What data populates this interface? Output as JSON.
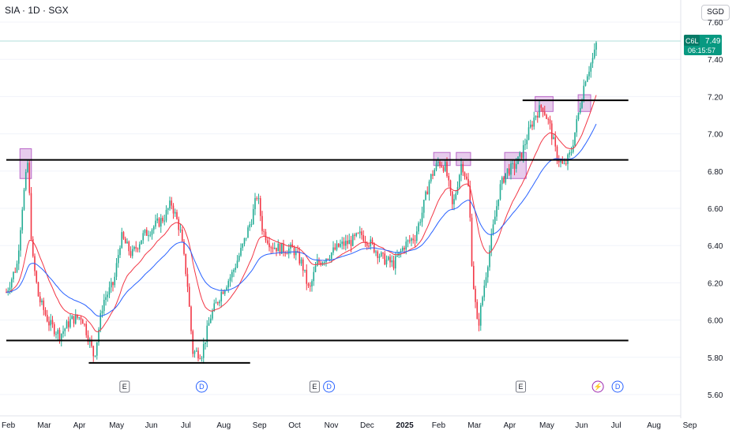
{
  "header": {
    "title": "SIA · 1D · SGX",
    "currency": "SGD"
  },
  "price_badge": {
    "ticker": "C6L",
    "price": "7.49",
    "countdown": "06:15:57",
    "color": "#089981"
  },
  "colors": {
    "up": "#22ab94",
    "down": "#f23645",
    "ema_fast": "#f23645",
    "ema_slow": "#2962ff",
    "level": "#000000",
    "zone_fill": "#e1bee7",
    "zone_stroke": "#ba68c8"
  },
  "chart_data": {
    "type": "candlestick",
    "title": "",
    "x_ticks": [
      "Feb",
      "Mar",
      "Apr",
      "May",
      "Jun",
      "Jul",
      "Aug",
      "Sep",
      "Oct",
      "Nov",
      "Dec",
      "2025",
      "Feb",
      "Mar",
      "Apr",
      "May",
      "Jun",
      "Jul",
      "Aug",
      "Sep"
    ],
    "y_ticks": [
      "7.60",
      "7.40",
      "7.20",
      "7.00",
      "6.80",
      "6.60",
      "6.40",
      "6.20",
      "6.00",
      "5.80",
      "5.60"
    ],
    "ylim": [
      5.6,
      7.6
    ],
    "last_price": 7.49,
    "price_path": [
      {
        "m": 0.0,
        "p": 6.15
      },
      {
        "m": 0.3,
        "p": 6.3
      },
      {
        "m": 0.45,
        "p": 6.62
      },
      {
        "m": 0.6,
        "p": 6.85
      },
      {
        "m": 0.72,
        "p": 6.35
      },
      {
        "m": 0.9,
        "p": 6.12
      },
      {
        "m": 1.2,
        "p": 5.98
      },
      {
        "m": 1.5,
        "p": 5.92
      },
      {
        "m": 1.8,
        "p": 6.0
      },
      {
        "m": 2.1,
        "p": 6.02
      },
      {
        "m": 2.3,
        "p": 5.9
      },
      {
        "m": 2.45,
        "p": 5.8
      },
      {
        "m": 2.7,
        "p": 6.1
      },
      {
        "m": 3.0,
        "p": 6.2
      },
      {
        "m": 3.2,
        "p": 6.45
      },
      {
        "m": 3.5,
        "p": 6.35
      },
      {
        "m": 3.8,
        "p": 6.45
      },
      {
        "m": 4.1,
        "p": 6.5
      },
      {
        "m": 4.4,
        "p": 6.55
      },
      {
        "m": 4.6,
        "p": 6.63
      },
      {
        "m": 4.85,
        "p": 6.48
      },
      {
        "m": 5.05,
        "p": 6.2
      },
      {
        "m": 5.2,
        "p": 5.83
      },
      {
        "m": 5.45,
        "p": 5.82
      },
      {
        "m": 5.7,
        "p": 6.02
      },
      {
        "m": 6.0,
        "p": 6.15
      },
      {
        "m": 6.3,
        "p": 6.25
      },
      {
        "m": 6.6,
        "p": 6.4
      },
      {
        "m": 6.85,
        "p": 6.55
      },
      {
        "m": 7.0,
        "p": 6.68
      },
      {
        "m": 7.15,
        "p": 6.48
      },
      {
        "m": 7.4,
        "p": 6.4
      },
      {
        "m": 7.7,
        "p": 6.38
      },
      {
        "m": 8.0,
        "p": 6.38
      },
      {
        "m": 8.25,
        "p": 6.3
      },
      {
        "m": 8.45,
        "p": 6.15
      },
      {
        "m": 8.65,
        "p": 6.3
      },
      {
        "m": 9.0,
        "p": 6.35
      },
      {
        "m": 9.3,
        "p": 6.4
      },
      {
        "m": 9.6,
        "p": 6.42
      },
      {
        "m": 9.9,
        "p": 6.46
      },
      {
        "m": 10.2,
        "p": 6.4
      },
      {
        "m": 10.5,
        "p": 6.33
      },
      {
        "m": 10.8,
        "p": 6.3
      },
      {
        "m": 11.1,
        "p": 6.4
      },
      {
        "m": 11.4,
        "p": 6.45
      },
      {
        "m": 11.6,
        "p": 6.58
      },
      {
        "m": 11.8,
        "p": 6.75
      },
      {
        "m": 12.05,
        "p": 6.85
      },
      {
        "m": 12.25,
        "p": 6.82
      },
      {
        "m": 12.45,
        "p": 6.6
      },
      {
        "m": 12.7,
        "p": 6.85
      },
      {
        "m": 12.9,
        "p": 6.7
      },
      {
        "m": 13.0,
        "p": 6.25
      },
      {
        "m": 13.15,
        "p": 5.95
      },
      {
        "m": 13.3,
        "p": 6.15
      },
      {
        "m": 13.5,
        "p": 6.4
      },
      {
        "m": 13.75,
        "p": 6.7
      },
      {
        "m": 13.95,
        "p": 6.8
      },
      {
        "m": 14.15,
        "p": 6.82
      },
      {
        "m": 14.35,
        "p": 6.88
      },
      {
        "m": 14.55,
        "p": 7.0
      },
      {
        "m": 14.75,
        "p": 7.1
      },
      {
        "m": 14.95,
        "p": 7.15
      },
      {
        "m": 15.15,
        "p": 7.05
      },
      {
        "m": 15.35,
        "p": 6.88
      },
      {
        "m": 15.55,
        "p": 6.82
      },
      {
        "m": 15.75,
        "p": 6.9
      },
      {
        "m": 15.95,
        "p": 7.1
      },
      {
        "m": 16.15,
        "p": 7.3
      },
      {
        "m": 16.35,
        "p": 7.4
      },
      {
        "m": 16.5,
        "p": 7.49
      }
    ],
    "levels": [
      {
        "price": 6.86,
        "m_start": 0.0,
        "m_end": 17.35
      },
      {
        "price": 7.18,
        "m_start": 14.4,
        "m_end": 17.35
      },
      {
        "price": 5.89,
        "m_start": 0.0,
        "m_end": 17.35
      },
      {
        "price": 5.77,
        "m_start": 2.3,
        "m_end": 6.8
      }
    ],
    "zones": [
      {
        "m_start": 0.38,
        "m_end": 0.7,
        "p_low": 6.76,
        "p_high": 6.92
      },
      {
        "m_start": 11.92,
        "m_end": 12.38,
        "p_low": 6.83,
        "p_high": 6.9
      },
      {
        "m_start": 12.55,
        "m_end": 12.95,
        "p_low": 6.83,
        "p_high": 6.9
      },
      {
        "m_start": 13.9,
        "m_end": 14.5,
        "p_low": 6.76,
        "p_high": 6.9
      },
      {
        "m_start": 14.75,
        "m_end": 15.25,
        "p_low": 7.12,
        "p_high": 7.2
      },
      {
        "m_start": 15.95,
        "m_end": 16.3,
        "p_low": 7.12,
        "p_high": 7.21
      }
    ],
    "events": [
      {
        "label": "E",
        "m": 3.3,
        "kind": "earnings"
      },
      {
        "label": "D",
        "m": 5.45,
        "kind": "dividend"
      },
      {
        "label": "E",
        "m": 8.6,
        "kind": "earnings"
      },
      {
        "label": "D",
        "m": 9.0,
        "kind": "dividend"
      },
      {
        "label": "E",
        "m": 14.35,
        "kind": "earnings"
      },
      {
        "label": "⚡",
        "m": 16.5,
        "kind": "split"
      },
      {
        "label": "D",
        "m": 17.05,
        "kind": "dividend"
      }
    ]
  }
}
